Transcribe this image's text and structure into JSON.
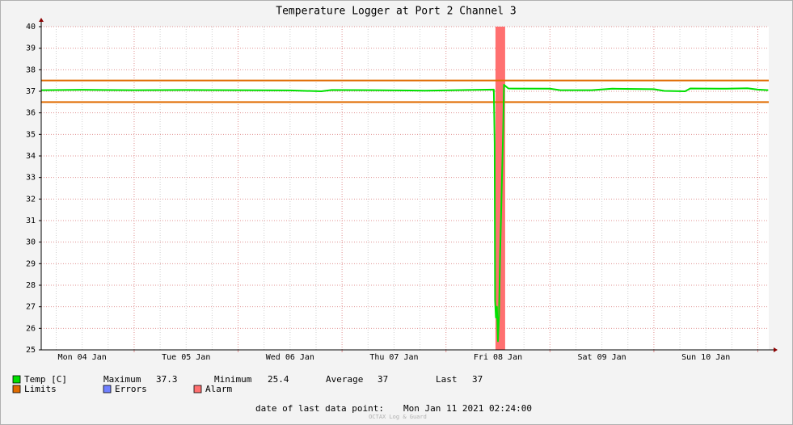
{
  "chart_data": {
    "type": "line",
    "title": "Temperature Logger at Port 2 Channel 3",
    "xlim": [
      0.106,
      7.105
    ],
    "xticks": [
      {
        "value": 0.5,
        "label": "Mon 04 Jan"
      },
      {
        "value": 1.5,
        "label": "Tue 05 Jan"
      },
      {
        "value": 2.5,
        "label": "Wed 06 Jan"
      },
      {
        "value": 3.5,
        "label": "Thu 07 Jan"
      },
      {
        "value": 4.5,
        "label": "Fri 08 Jan"
      },
      {
        "value": 5.5,
        "label": "Sat 09 Jan"
      },
      {
        "value": 6.5,
        "label": "Sun 10 Jan"
      }
    ],
    "ylim": [
      25,
      40
    ],
    "yticks": [
      25,
      26,
      27,
      28,
      29,
      30,
      31,
      32,
      33,
      34,
      35,
      36,
      37,
      38,
      39,
      40
    ],
    "grid": true,
    "series": [
      {
        "name": "Temp [C]",
        "color": "#00e000",
        "x": [
          0.11,
          0.5,
          1.0,
          1.5,
          2.0,
          2.5,
          2.8,
          2.9,
          3.3,
          3.8,
          4.2,
          4.46,
          4.468,
          4.472,
          4.48,
          4.49,
          4.5,
          4.51,
          4.52,
          4.535,
          4.55,
          4.558,
          4.6,
          5.0,
          5.1,
          5.4,
          5.6,
          6.0,
          6.1,
          6.3,
          6.35,
          6.7,
          6.9,
          7.0,
          7.1
        ],
        "values": [
          37.05,
          37.07,
          37.05,
          37.06,
          37.05,
          37.04,
          37.0,
          37.06,
          37.05,
          37.03,
          37.06,
          37.08,
          34.6,
          27.3,
          26.5,
          27.0,
          25.4,
          26.6,
          29.3,
          32.3,
          35.2,
          37.3,
          37.13,
          37.12,
          37.05,
          37.05,
          37.12,
          37.1,
          37.02,
          37.0,
          37.13,
          37.12,
          37.14,
          37.08,
          37.05
        ]
      }
    ],
    "limits": {
      "name": "Limits",
      "color": "#e06c00",
      "values": [
        36.5,
        37.5
      ]
    },
    "errors": {
      "name": "Errors",
      "color": "#7080ff"
    },
    "alarm": {
      "name": "Alarm",
      "color": "#ff7070",
      "x": [
        4.476,
        4.569
      ]
    },
    "stats": [
      {
        "label": "Maximum",
        "value": 37.3
      },
      {
        "label": "Minimum",
        "value": 25.4
      },
      {
        "label": "Average",
        "value": 37.0
      },
      {
        "label": "Last",
        "value": 37.0
      }
    ],
    "footer": {
      "label": "date of last data point:",
      "value": "Mon Jan 11 2021 02:24:00"
    },
    "watermark": "OCTAX Log & Guard"
  }
}
